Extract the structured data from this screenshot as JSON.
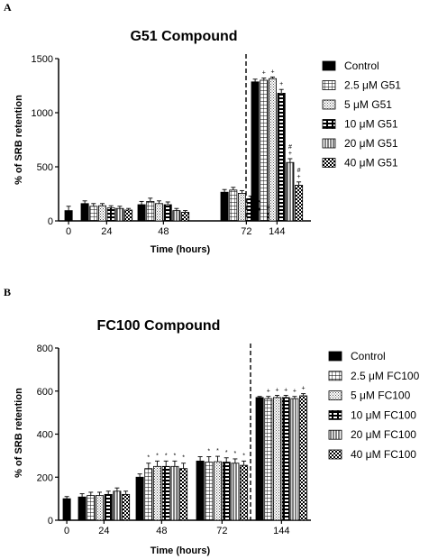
{
  "chart_data": [
    {
      "panel_label": "A",
      "type": "bar",
      "title": "G51  Compound",
      "xlabel": "Time (hours)",
      "ylabel": "% of SRB retention",
      "ylim": [
        0,
        1500
      ],
      "yticks": [
        "0",
        "500",
        "1000",
        "1500"
      ],
      "categories": [
        "0",
        "24",
        "48",
        "72",
        "144"
      ],
      "legend_position": "right",
      "divider_after_category": "72",
      "series": [
        {
          "name": "Control",
          "pattern": "solid",
          "values": [
            95,
            160,
            150,
            265,
            1285
          ],
          "errors": [
            40,
            25,
            30,
            25,
            25
          ]
        },
        {
          "name": "2.5 μM G51",
          "pattern": "grid",
          "values": [
            null,
            135,
            180,
            285,
            1300
          ],
          "errors": [
            null,
            25,
            30,
            25,
            20
          ]
        },
        {
          "name": "5 μM G51",
          "pattern": "dots",
          "values": [
            null,
            140,
            160,
            255,
            1315
          ],
          "errors": [
            null,
            20,
            25,
            25,
            15
          ]
        },
        {
          "name": "10 μM G51",
          "pattern": "dashes",
          "values": [
            null,
            120,
            150,
            205,
            1180
          ],
          "errors": [
            null,
            20,
            25,
            25,
            35
          ]
        },
        {
          "name": "20 μM G51",
          "pattern": "vlines",
          "values": [
            null,
            115,
            95,
            100,
            540
          ],
          "errors": [
            null,
            20,
            20,
            15,
            35
          ]
        },
        {
          "name": "40 μM G51",
          "pattern": "checker",
          "values": [
            null,
            100,
            80,
            60,
            330
          ],
          "errors": [
            null,
            15,
            15,
            10,
            30
          ]
        }
      ],
      "annotations": [
        {
          "category": "72",
          "series": 4,
          "text": "*"
        },
        {
          "category": "72",
          "series": 5,
          "text": "#"
        },
        {
          "category": "144",
          "series": 1,
          "text": "+"
        },
        {
          "category": "144",
          "series": 2,
          "text": "+"
        },
        {
          "category": "144",
          "series": 3,
          "text": "+"
        },
        {
          "category": "144",
          "series": 4,
          "text": "+"
        },
        {
          "category": "144",
          "series": 4,
          "text": "#"
        },
        {
          "category": "144",
          "series": 5,
          "text": "+"
        },
        {
          "category": "144",
          "series": 5,
          "text": "#"
        }
      ]
    },
    {
      "panel_label": "B",
      "type": "bar",
      "title": "FC100 Compound",
      "xlabel": "Time (hours)",
      "ylabel": "% of SRB retention",
      "ylim": [
        0,
        800
      ],
      "yticks": [
        "0",
        "200",
        "400",
        "600",
        "800"
      ],
      "categories": [
        "0",
        "24",
        "48",
        "72",
        "144"
      ],
      "legend_position": "right",
      "divider_after_category": "72",
      "series": [
        {
          "name": "Control",
          "pattern": "solid",
          "values": [
            100,
            108,
            200,
            275,
            570
          ],
          "errors": [
            10,
            15,
            15,
            20,
            5
          ]
        },
        {
          "name": "2.5 μM FC100",
          "pattern": "grid",
          "values": [
            null,
            115,
            240,
            270,
            565
          ],
          "errors": [
            null,
            15,
            25,
            25,
            10
          ]
        },
        {
          "name": "5 μM FC100",
          "pattern": "dots",
          "values": [
            null,
            115,
            250,
            272,
            570
          ],
          "errors": [
            null,
            15,
            25,
            25,
            10
          ]
        },
        {
          "name": "10 μM FC100",
          "pattern": "dashes",
          "values": [
            null,
            120,
            250,
            270,
            570
          ],
          "errors": [
            null,
            15,
            25,
            20,
            10
          ]
        },
        {
          "name": "20 μM FC100",
          "pattern": "vlines",
          "values": [
            null,
            135,
            250,
            265,
            565
          ],
          "errors": [
            null,
            15,
            25,
            20,
            10
          ]
        },
        {
          "name": "40 μM FC100",
          "pattern": "checker",
          "values": [
            null,
            120,
            240,
            255,
            578
          ],
          "errors": [
            null,
            15,
            25,
            20,
            10
          ]
        }
      ],
      "annotations": [
        {
          "category": "48",
          "series": 1,
          "text": "*"
        },
        {
          "category": "48",
          "series": 2,
          "text": "*"
        },
        {
          "category": "48",
          "series": 3,
          "text": "*"
        },
        {
          "category": "48",
          "series": 4,
          "text": "*"
        },
        {
          "category": "48",
          "series": 5,
          "text": "*"
        },
        {
          "category": "72",
          "series": 1,
          "text": "*"
        },
        {
          "category": "72",
          "series": 2,
          "text": "*"
        },
        {
          "category": "72",
          "series": 3,
          "text": "*"
        },
        {
          "category": "72",
          "series": 4,
          "text": "*"
        },
        {
          "category": "72",
          "series": 5,
          "text": "*"
        },
        {
          "category": "144",
          "series": 1,
          "text": "+"
        },
        {
          "category": "144",
          "series": 2,
          "text": "+"
        },
        {
          "category": "144",
          "series": 3,
          "text": "+"
        },
        {
          "category": "144",
          "series": 4,
          "text": "+"
        },
        {
          "category": "144",
          "series": 5,
          "text": "+"
        }
      ]
    }
  ]
}
